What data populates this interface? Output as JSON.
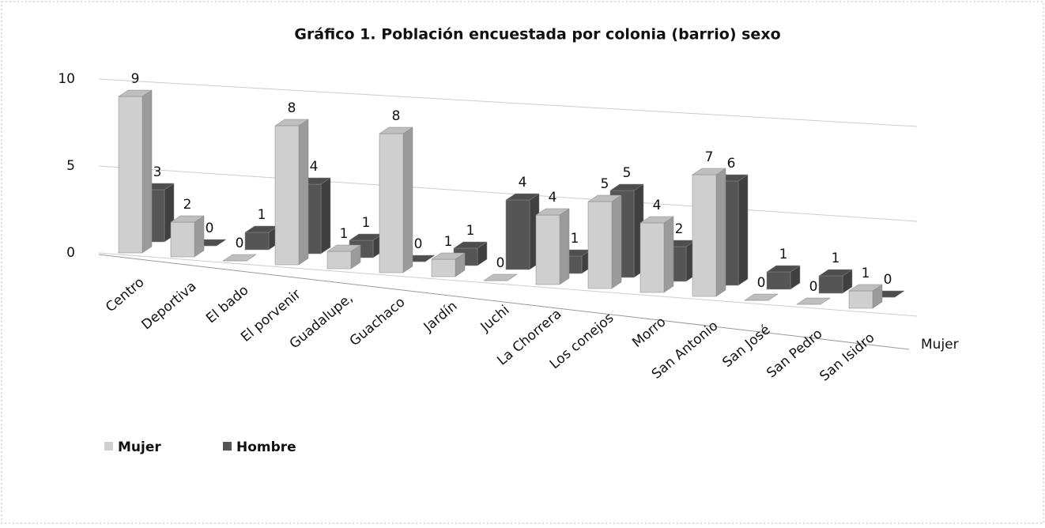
{
  "chart_data": {
    "type": "bar3d",
    "title": "Gráfico 1. Población encuestada por colonia (barrio) sexo",
    "categories": [
      "Centro",
      "Deportiva",
      "El bado",
      "El porvenir",
      "Guadalupe,",
      "Guachaco",
      "Jardín",
      "Juchi",
      "La Chorrera",
      "Los conejos",
      "Morro",
      "San Antonio",
      "San José",
      "San Pedro",
      "San Isidro"
    ],
    "series": [
      {
        "name": "Mujer",
        "color": "#cfcfcf",
        "values": [
          9,
          2,
          0,
          8,
          1,
          8,
          1,
          0,
          4,
          5,
          4,
          7,
          0,
          0,
          1
        ]
      },
      {
        "name": "Hombre",
        "color": "#555555",
        "values": [
          3,
          0,
          1,
          4,
          1,
          0,
          1,
          4,
          1,
          5,
          2,
          6,
          1,
          1,
          0
        ]
      }
    ],
    "depth_label": "Mujer",
    "ylim": [
      0,
      10
    ],
    "yticks": [
      0,
      5,
      10
    ],
    "grid": true,
    "legend": "bottom-left"
  }
}
